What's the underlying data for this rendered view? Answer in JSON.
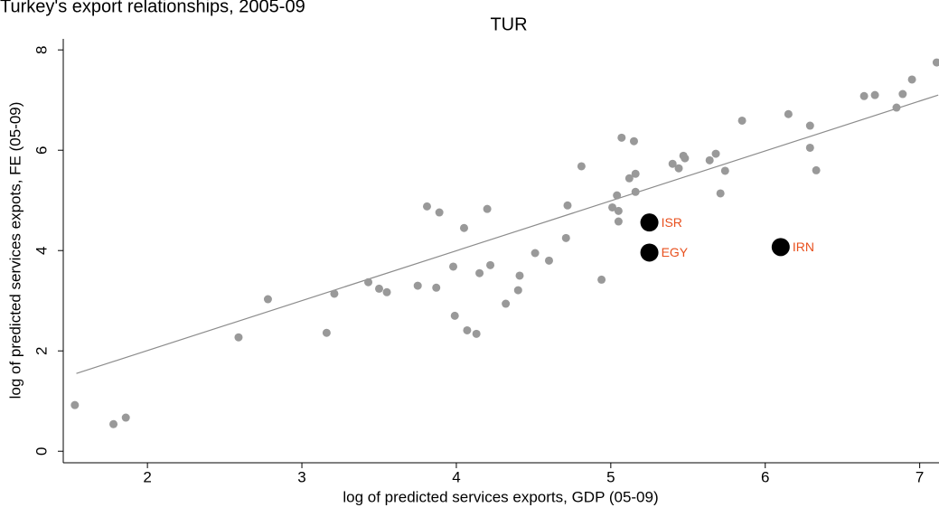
{
  "chart_data": {
    "type": "scatter",
    "title": "Turkey's export relationships, 2005-09",
    "subtitle": "TUR",
    "xlabel": "log of predicted services exports, GDP (05-09)",
    "ylabel": "log of predicted services expots, FE (05-09)",
    "xlim": [
      1.455,
      7.125
    ],
    "ylim": [
      -0.23,
      8.22
    ],
    "xticks": [
      2,
      3,
      4,
      5,
      6,
      7
    ],
    "yticks": [
      0,
      2,
      4,
      6,
      8
    ],
    "series": [
      {
        "color": "#999999",
        "x": [
          1.53,
          1.78,
          1.86,
          2.59,
          2.78,
          3.16,
          3.21,
          3.43,
          3.5,
          3.55,
          3.75,
          3.81,
          3.87,
          3.89,
          3.98,
          3.99,
          4.05,
          4.07,
          4.13,
          4.15,
          4.2,
          4.22,
          4.4,
          4.41,
          4.32,
          4.51,
          4.6,
          4.71,
          4.72,
          4.81,
          4.94,
          5.01,
          5.04,
          5.05,
          5.05,
          5.12,
          5.07,
          5.16,
          5.16,
          5.15,
          5.4,
          5.44,
          5.47,
          5.48,
          5.64,
          5.68,
          5.71,
          5.74,
          5.85,
          6.15,
          6.29,
          6.29,
          6.33,
          6.64,
          6.71,
          6.85,
          6.89,
          6.95,
          7.11
        ],
        "y": [
          0.92,
          0.54,
          0.67,
          2.27,
          3.03,
          2.36,
          3.14,
          3.37,
          3.24,
          3.17,
          3.3,
          4.88,
          3.26,
          4.76,
          3.68,
          2.7,
          4.45,
          2.41,
          2.34,
          3.55,
          4.83,
          3.71,
          3.21,
          3.5,
          2.94,
          3.95,
          3.8,
          4.25,
          4.9,
          5.68,
          3.42,
          4.86,
          5.1,
          4.79,
          4.58,
          5.44,
          6.25,
          5.53,
          5.17,
          6.18,
          5.73,
          5.64,
          5.89,
          5.84,
          5.8,
          5.93,
          5.14,
          5.59,
          6.59,
          6.72,
          6.49,
          6.05,
          5.6,
          7.08,
          7.1,
          6.85,
          7.12,
          7.41,
          7.75
        ]
      },
      {
        "color": "#000000",
        "label_color": "#e8501e",
        "x": [
          5.25,
          5.25,
          6.1
        ],
        "y": [
          4.56,
          3.96,
          4.07
        ],
        "labels": [
          "ISR",
          "EGY",
          "IRN"
        ]
      }
    ],
    "fit": {
      "color": "#8c8c8c",
      "x": [
        1.54,
        7.12
      ],
      "y": [
        1.55,
        7.1
      ]
    }
  }
}
